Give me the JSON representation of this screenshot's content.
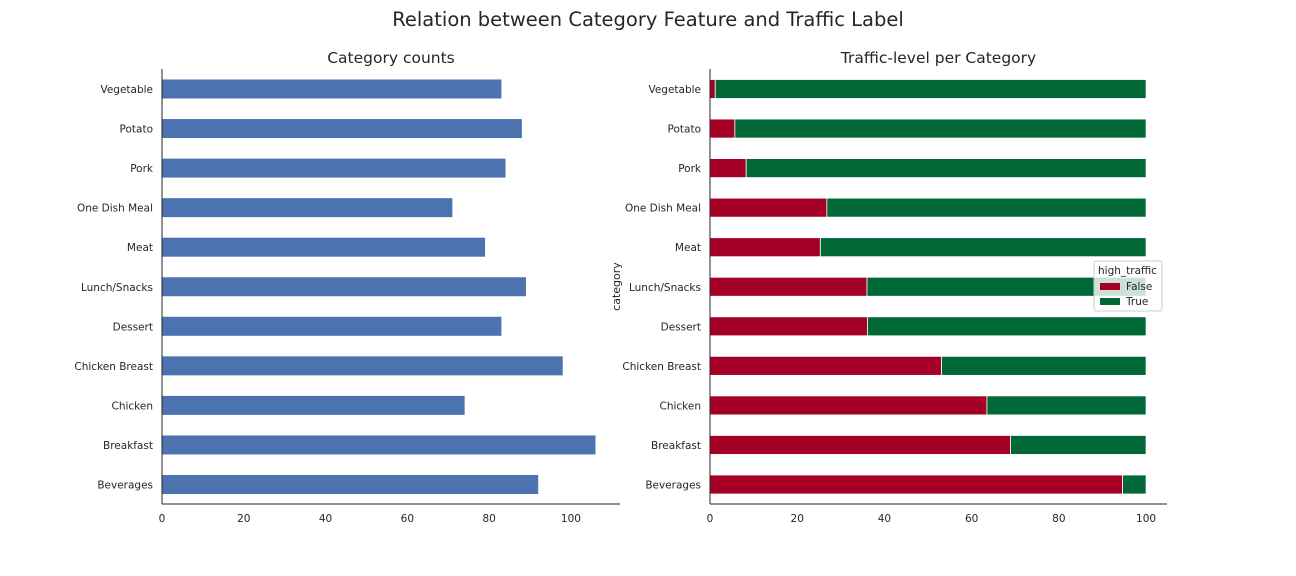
{
  "suptitle": "Relation between Category Feature and Traffic Label",
  "chart_data": [
    {
      "type": "bar",
      "orientation": "horizontal",
      "title": "Category counts",
      "xlabel": "",
      "ylabel": "",
      "categories": [
        "Beverages",
        "Breakfast",
        "Chicken",
        "Chicken Breast",
        "Dessert",
        "Lunch/Snacks",
        "Meat",
        "One Dish Meal",
        "Pork",
        "Potato",
        "Vegetable"
      ],
      "values": [
        92,
        106,
        74,
        98,
        83,
        89,
        79,
        71,
        84,
        88,
        83
      ],
      "xlim": [
        0,
        112
      ],
      "xticks": [
        0,
        20,
        40,
        60,
        80,
        100
      ],
      "color": "#4c72b0",
      "grid": false
    },
    {
      "type": "bar",
      "orientation": "horizontal",
      "stacked": true,
      "title": "Traffic-level per Category",
      "xlabel": "",
      "ylabel": "category",
      "categories": [
        "Beverages",
        "Breakfast",
        "Chicken",
        "Chicken Breast",
        "Dessert",
        "Lunch/Snacks",
        "Meat",
        "One Dish Meal",
        "Pork",
        "Potato",
        "Vegetable"
      ],
      "series": [
        {
          "name": "False",
          "color": "#a50026",
          "values": [
            94.6,
            68.9,
            63.5,
            53.1,
            36.1,
            36.0,
            25.3,
            26.8,
            8.3,
            5.7,
            1.2
          ]
        },
        {
          "name": "True",
          "color": "#006837",
          "values": [
            5.4,
            31.1,
            36.5,
            46.9,
            63.9,
            64.0,
            74.7,
            73.2,
            91.7,
            94.3,
            98.8
          ]
        }
      ],
      "xlim": [
        0,
        104.8
      ],
      "xticks": [
        0,
        20,
        40,
        60,
        80,
        100
      ],
      "legend": {
        "title": "high_traffic",
        "position": "center-right"
      },
      "grid": false
    }
  ]
}
